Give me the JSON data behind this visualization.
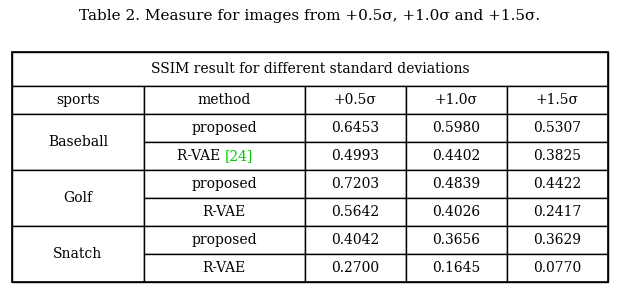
{
  "title": "Table 2. Measure for images from +0.5σ, +1.0σ and +1.5σ.",
  "header_merged": "SSIM result for different standard deviations",
  "col_headers": [
    "sports",
    "method",
    "+0.5σ",
    "+1.0σ",
    "+1.5σ"
  ],
  "rows": [
    [
      "Baseball",
      "proposed",
      "0.6453",
      "0.5980",
      "0.5307"
    ],
    [
      "Baseball",
      "R-VAE [24]",
      "0.4993",
      "0.4402",
      "0.3825"
    ],
    [
      "Golf",
      "proposed",
      "0.7203",
      "0.4839",
      "0.4422"
    ],
    [
      "Golf",
      "R-VAE",
      "0.5642",
      "0.4026",
      "0.2417"
    ],
    [
      "Snatch",
      "proposed",
      "0.4042",
      "0.3656",
      "0.3629"
    ],
    [
      "Snatch",
      "R-VAE",
      "0.2700",
      "0.1645",
      "0.0770"
    ]
  ],
  "rvae_citation_color": "#00cc00",
  "background_color": "#ffffff",
  "border_color": "#000000",
  "text_color": "#000000",
  "font_size": 10,
  "title_font_size": 11
}
